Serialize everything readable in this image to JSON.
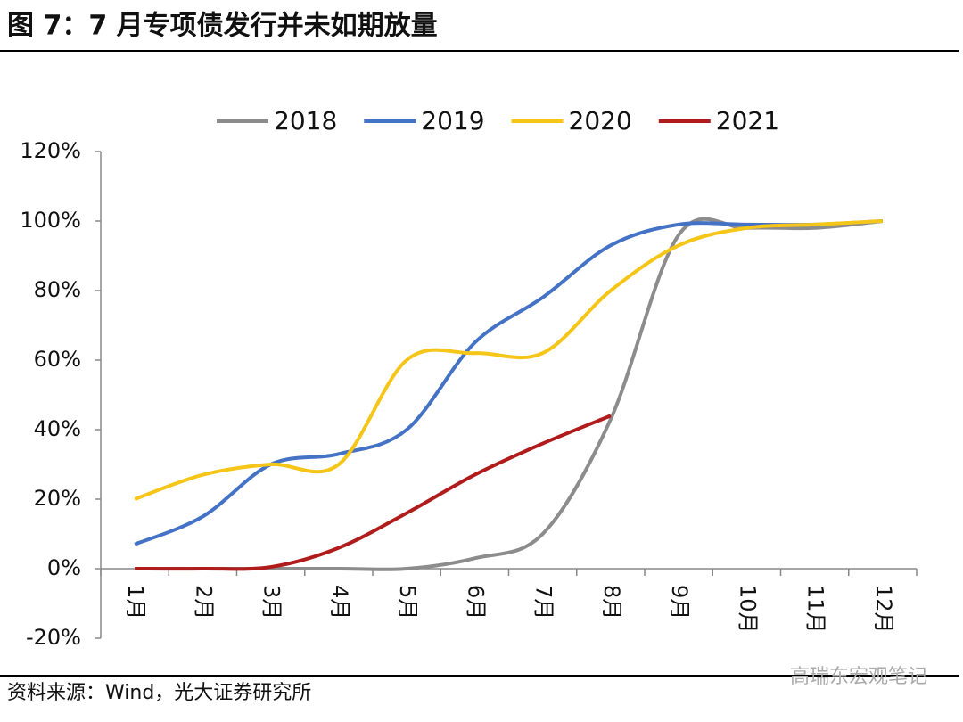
{
  "chart_data": {
    "type": "line",
    "title": "图 7：7 月专项债发行并未如期放量",
    "source": "资料来源：Wind，光大证券研究所",
    "watermark": "高瑞东宏观笔记",
    "categories": [
      "1月",
      "2月",
      "3月",
      "4月",
      "5月",
      "6月",
      "7月",
      "8月",
      "9月",
      "10月",
      "11月",
      "12月"
    ],
    "series": [
      {
        "name": "2018",
        "color": "#8c8c8c",
        "values": [
          0,
          0,
          0,
          0,
          0,
          3,
          10,
          43,
          96,
          98,
          98,
          100
        ]
      },
      {
        "name": "2019",
        "color": "#4472c4",
        "values": [
          7,
          15,
          30,
          33,
          40,
          65,
          78,
          93,
          99,
          99,
          99,
          100
        ]
      },
      {
        "name": "2020",
        "color": "#f5c518",
        "values": [
          20,
          27,
          30,
          30,
          60,
          62,
          62,
          80,
          93,
          98,
          99,
          100
        ]
      },
      {
        "name": "2021",
        "color": "#b01c1c",
        "values": [
          0,
          0,
          0.5,
          6,
          16,
          27,
          36,
          44,
          null,
          null,
          null,
          null
        ]
      }
    ],
    "ylim": [
      -20,
      120
    ],
    "yticks": [
      {
        "value": -20,
        "label": "-20%"
      },
      {
        "value": 0,
        "label": "0%"
      },
      {
        "value": 20,
        "label": "20%"
      },
      {
        "value": 40,
        "label": "40%"
      },
      {
        "value": 60,
        "label": "60%"
      },
      {
        "value": 80,
        "label": "80%"
      },
      {
        "value": 100,
        "label": "100%"
      },
      {
        "value": 120,
        "label": "120%"
      }
    ],
    "grid": false,
    "legend": "top"
  }
}
